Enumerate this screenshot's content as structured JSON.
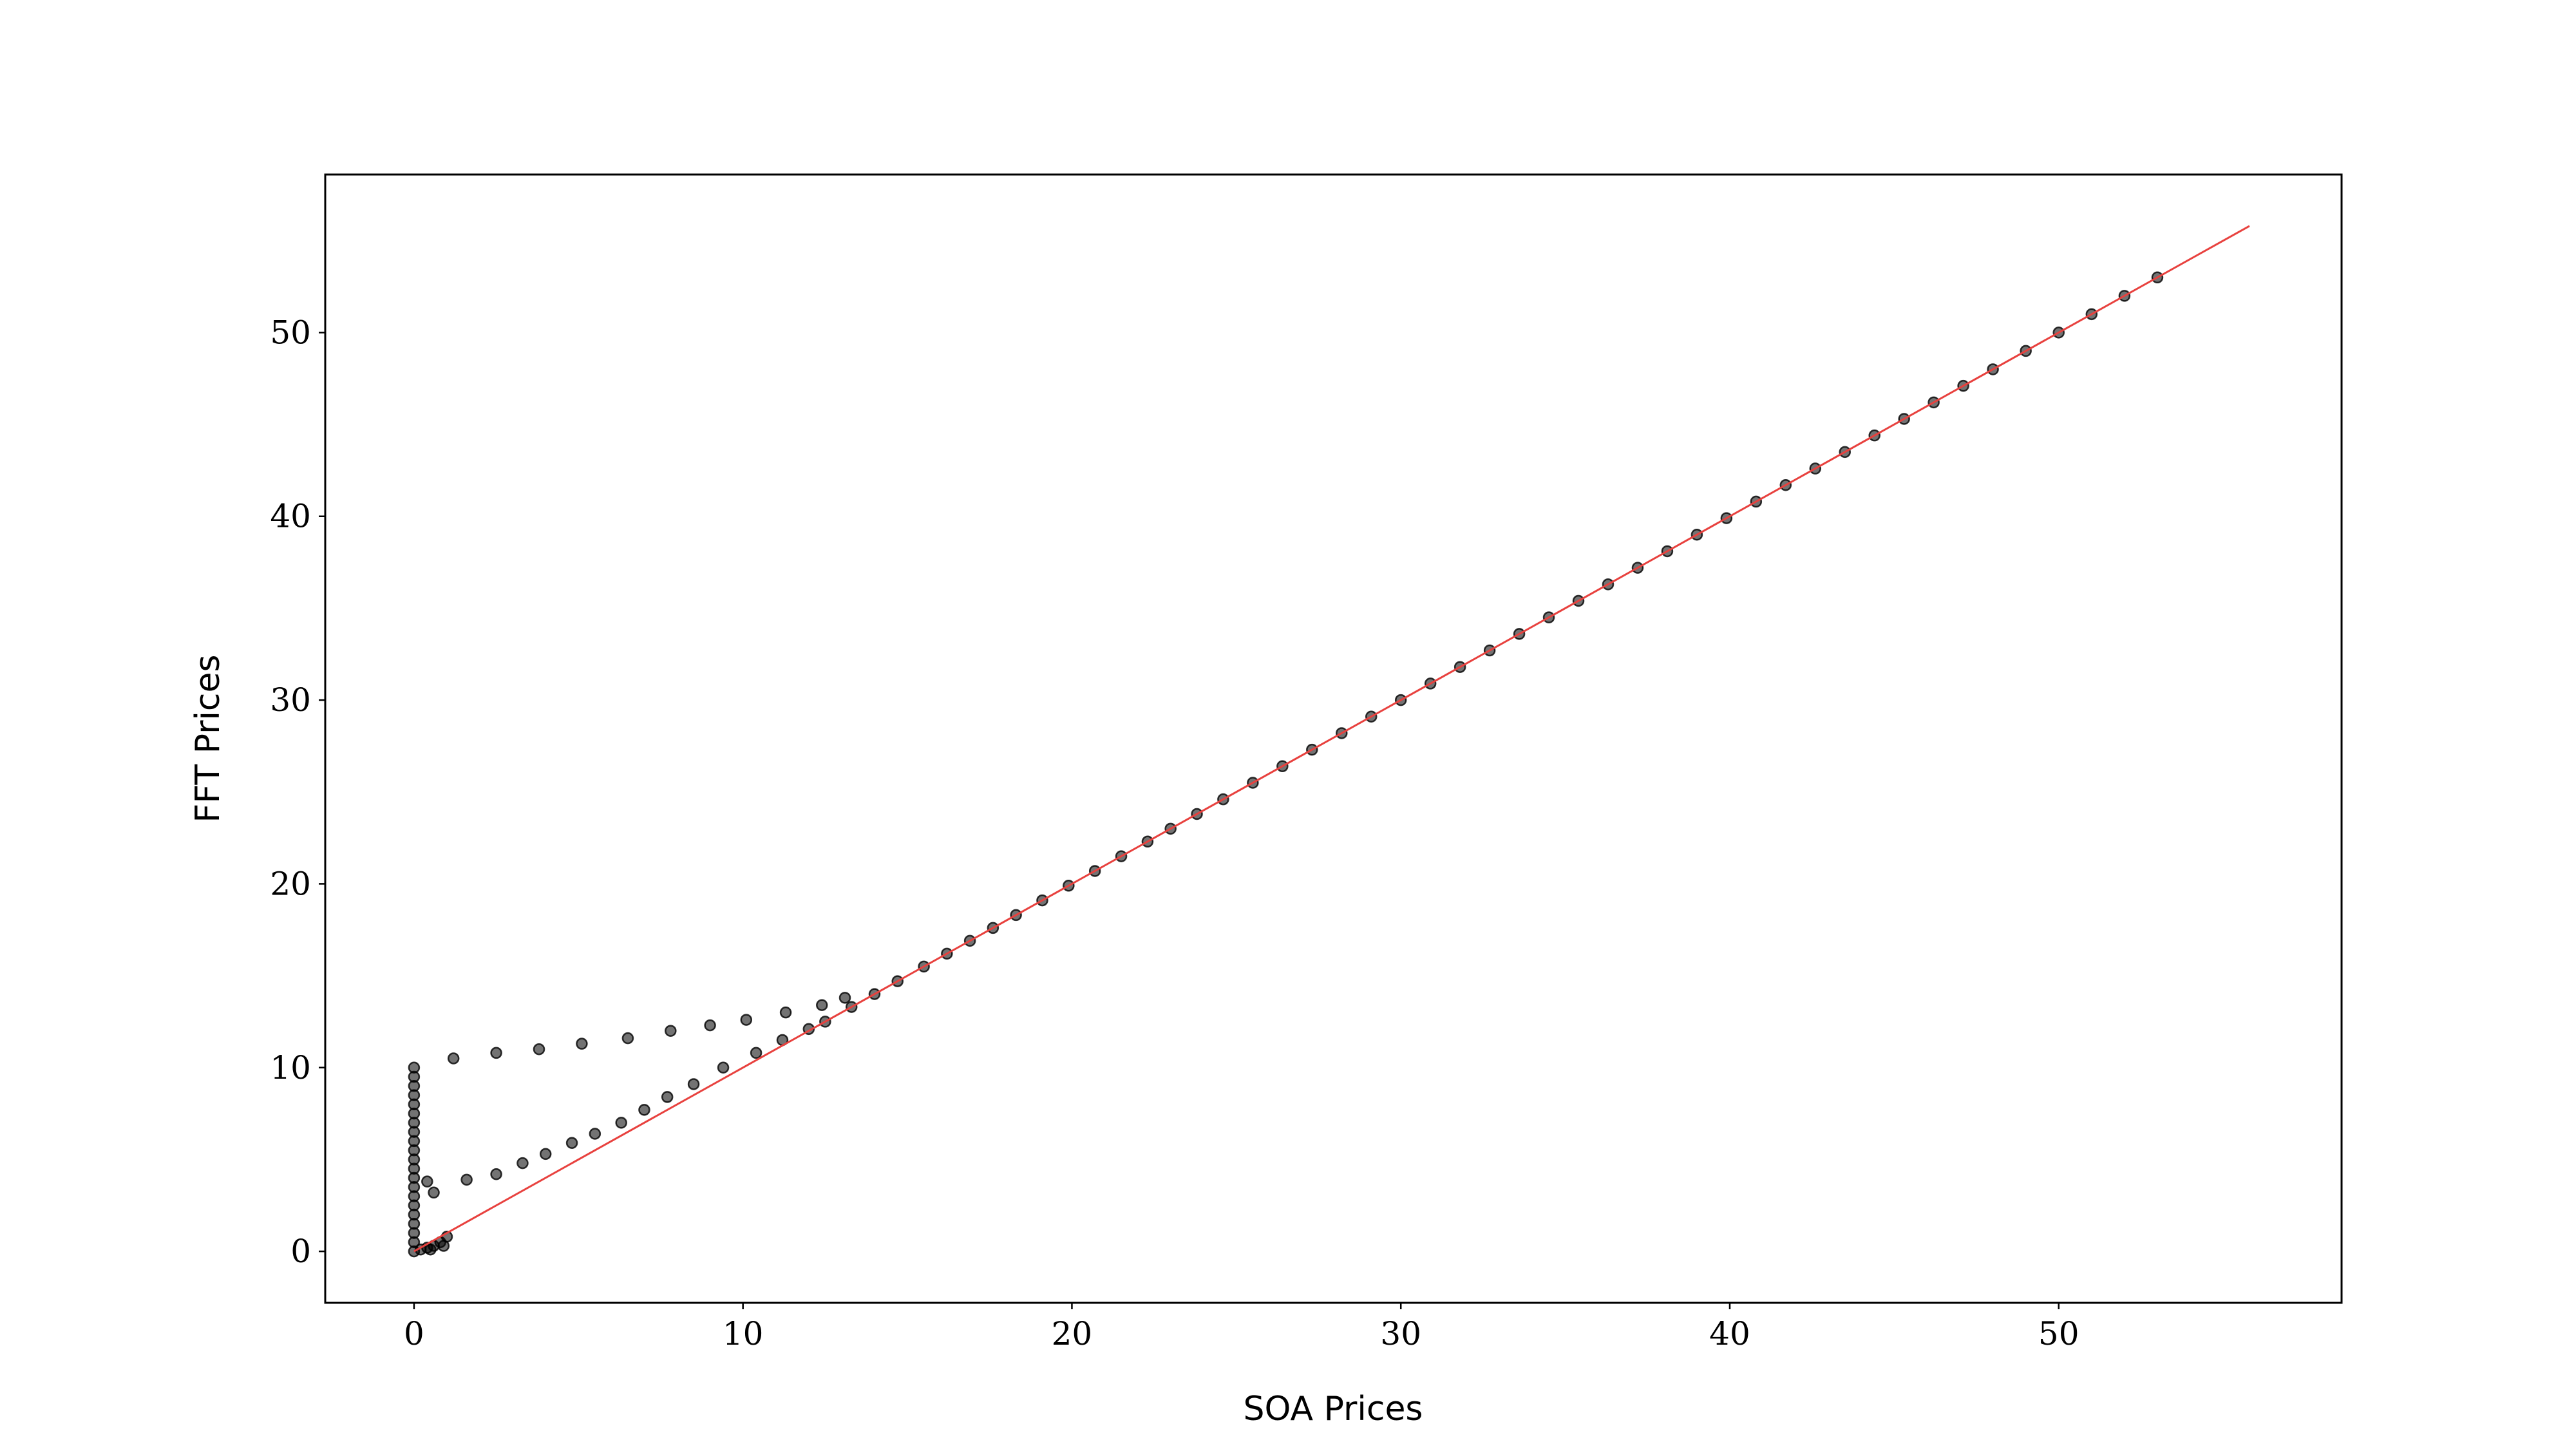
{
  "chart_data": {
    "type": "scatter",
    "xlabel": "SOA Prices",
    "ylabel": "FFT Prices",
    "xlim": [
      -2.7,
      58.6
    ],
    "ylim": [
      -2.8,
      58.6
    ],
    "xticks": [
      0,
      10,
      20,
      30,
      40,
      50
    ],
    "yticks": [
      0,
      10,
      20,
      30,
      40,
      50
    ],
    "grid": false,
    "series": [
      {
        "color": "#000000",
        "mode": "markers",
        "x": [
          0,
          0,
          0,
          0,
          0,
          0,
          0,
          0,
          0,
          0,
          0,
          0,
          0,
          0,
          0,
          0,
          0,
          0,
          0,
          0,
          0,
          0.2,
          0.4,
          0.6,
          0.8,
          1.0,
          0.9,
          0.5,
          1.2,
          2.5,
          3.8,
          5.1,
          6.5,
          7.8,
          9.0,
          10.1,
          11.3,
          12.4,
          13.1,
          0.4,
          0.6,
          1.6,
          2.5,
          3.3,
          4.0,
          4.8,
          5.5,
          6.3,
          7.0,
          7.7,
          8.5,
          9.4,
          10.4,
          11.2,
          12.0,
          12.5,
          13.3,
          14.0,
          14.7,
          15.5,
          16.2,
          16.9,
          17.6,
          18.3,
          19.1,
          19.9,
          20.7,
          21.5,
          22.3,
          23.0,
          23.8,
          24.6,
          25.5,
          26.4,
          27.3,
          28.2,
          29.1,
          30.0,
          30.9,
          31.8,
          32.7,
          33.6,
          34.5,
          35.4,
          36.3,
          37.2,
          38.1,
          39.0,
          39.9,
          40.8,
          41.7,
          42.6,
          43.5,
          44.4,
          45.3,
          46.2,
          47.1,
          48.0,
          49.0,
          50.0,
          51.0,
          52.0,
          53.0
        ],
        "values": [
          0,
          0.5,
          1,
          1.5,
          2,
          2.5,
          3,
          3.5,
          4,
          4.5,
          5,
          5.5,
          6,
          6.5,
          7,
          7.5,
          8,
          8.5,
          9,
          9.5,
          10,
          0.1,
          0.2,
          0.3,
          0.5,
          0.8,
          0.3,
          0.1,
          10.5,
          10.8,
          11.0,
          11.3,
          11.6,
          12.0,
          12.3,
          12.6,
          13.0,
          13.4,
          13.8,
          3.8,
          3.2,
          3.9,
          4.2,
          4.8,
          5.3,
          5.9,
          6.4,
          7.0,
          7.7,
          8.4,
          9.1,
          10.0,
          10.8,
          11.5,
          12.1,
          12.5,
          13.3,
          14.0,
          14.7,
          15.5,
          16.2,
          16.9,
          17.6,
          18.3,
          19.1,
          19.9,
          20.7,
          21.5,
          22.3,
          23.0,
          23.8,
          24.6,
          25.5,
          26.4,
          27.3,
          28.2,
          29.1,
          30.0,
          30.9,
          31.8,
          32.7,
          33.6,
          34.5,
          35.4,
          36.3,
          37.2,
          38.1,
          39.0,
          39.9,
          40.8,
          41.7,
          42.6,
          43.5,
          44.4,
          45.3,
          46.2,
          47.1,
          48.0,
          49.0,
          50.0,
          51.0,
          52.0,
          53.0
        ]
      },
      {
        "color": "#e8413e",
        "mode": "line",
        "x": [
          0,
          55.8
        ],
        "values": [
          0,
          55.8
        ]
      }
    ]
  }
}
